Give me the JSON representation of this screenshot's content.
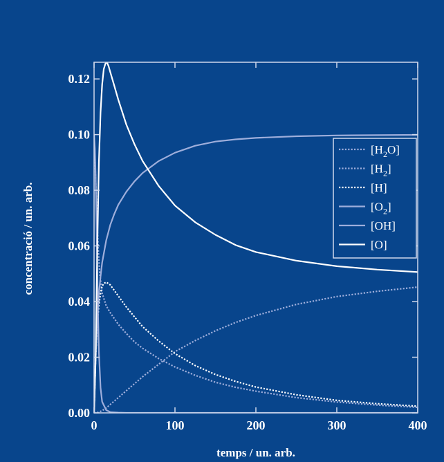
{
  "chart_data": {
    "type": "line",
    "title": "",
    "xlabel": "temps / un. arb.",
    "ylabel": "concentració / un. arb.",
    "xlim": [
      0,
      400
    ],
    "ylim": [
      0,
      0.126
    ],
    "x_ticks": [
      "0",
      "100",
      "200",
      "300",
      "400"
    ],
    "y_ticks": [
      "0.00",
      "0.02",
      "0.04",
      "0.06",
      "0.08",
      "0.10",
      "0.12"
    ],
    "legend_position": "upper-right",
    "grid": false,
    "colors": {
      "background": "#08458c",
      "axis": "#cfd8ec",
      "text": "#ffffff",
      "light_series": "#9eaedb",
      "white_series": "#ffffff"
    },
    "series": [
      {
        "name": "[H2O]",
        "legend": {
          "main": "[H",
          "sub": "2",
          "tail": "O]"
        },
        "style": "dotted",
        "color": "#9eaedb",
        "x": [
          0,
          5,
          10,
          15,
          20,
          30,
          40,
          50,
          60,
          80,
          100,
          125,
          150,
          175,
          200,
          250,
          300,
          350,
          400
        ],
        "y": [
          0,
          0.0002,
          0.0008,
          0.0018,
          0.003,
          0.0055,
          0.008,
          0.0105,
          0.013,
          0.0175,
          0.022,
          0.026,
          0.0295,
          0.0325,
          0.035,
          0.039,
          0.0418,
          0.0437,
          0.0452
        ]
      },
      {
        "name": "[H2]",
        "legend": {
          "main": "[H",
          "sub": "2",
          "tail": "]"
        },
        "style": "dotted",
        "color": "#9eaedb",
        "x": [
          0,
          1,
          2,
          3,
          5,
          7,
          10,
          15,
          20,
          30,
          40,
          50,
          60,
          80,
          100,
          125,
          150,
          175,
          200,
          250,
          300,
          350,
          400
        ],
        "y": [
          0.1,
          0.093,
          0.084,
          0.075,
          0.06,
          0.05,
          0.043,
          0.0385,
          0.036,
          0.0318,
          0.0285,
          0.0255,
          0.0232,
          0.0195,
          0.0165,
          0.0135,
          0.011,
          0.0092,
          0.0078,
          0.0055,
          0.0039,
          0.0028,
          0.002
        ]
      },
      {
        "name": "[H]",
        "legend": {
          "main": "[H]",
          "sub": "",
          "tail": ""
        },
        "style": "dotted",
        "color": "#ffffff",
        "x": [
          0,
          2,
          4,
          6,
          8,
          10,
          12,
          15,
          20,
          25,
          30,
          40,
          50,
          60,
          80,
          100,
          125,
          150,
          175,
          200,
          250,
          300,
          350,
          400
        ],
        "y": [
          0,
          0.02,
          0.032,
          0.039,
          0.043,
          0.0455,
          0.0465,
          0.047,
          0.046,
          0.044,
          0.042,
          0.038,
          0.0345,
          0.031,
          0.0258,
          0.0213,
          0.017,
          0.0138,
          0.0113,
          0.0093,
          0.0065,
          0.0045,
          0.0033,
          0.0024
        ]
      },
      {
        "name": "[O2]",
        "legend": {
          "main": "[O",
          "sub": "2",
          "tail": "]"
        },
        "style": "solid",
        "color": "#9eaedb",
        "x": [
          0,
          1,
          2,
          3,
          4,
          5,
          6,
          8,
          10,
          15,
          20,
          30,
          40,
          400
        ],
        "y": [
          0.1,
          0.095,
          0.085,
          0.07,
          0.052,
          0.035,
          0.022,
          0.009,
          0.004,
          0.001,
          0.0003,
          0.0001,
          0,
          0
        ]
      },
      {
        "name": "[OH]",
        "legend": {
          "main": "[OH]",
          "sub": "",
          "tail": ""
        },
        "style": "solid",
        "color": "#9eaedb",
        "x": [
          0,
          2,
          4,
          6,
          8,
          10,
          15,
          20,
          25,
          30,
          40,
          50,
          60,
          80,
          100,
          125,
          150,
          175,
          200,
          250,
          300,
          350,
          400
        ],
        "y": [
          0,
          0.02,
          0.034,
          0.043,
          0.049,
          0.054,
          0.062,
          0.0675,
          0.0715,
          0.0748,
          0.0795,
          0.0832,
          0.0862,
          0.0905,
          0.0935,
          0.096,
          0.0975,
          0.0983,
          0.0988,
          0.0994,
          0.0997,
          0.0998,
          0.0999
        ]
      },
      {
        "name": "[O]",
        "legend": {
          "main": "[O]",
          "sub": "",
          "tail": ""
        },
        "style": "solid",
        "color": "#ffffff",
        "x": [
          0,
          2,
          4,
          6,
          8,
          10,
          12,
          14,
          16,
          18,
          20,
          25,
          30,
          40,
          50,
          60,
          80,
          100,
          125,
          150,
          175,
          200,
          250,
          300,
          350,
          400
        ],
        "y": [
          0,
          0.02,
          0.06,
          0.09,
          0.108,
          0.118,
          0.1235,
          0.1255,
          0.126,
          0.1245,
          0.1225,
          0.1175,
          0.1125,
          0.1035,
          0.0965,
          0.0905,
          0.0815,
          0.0745,
          0.0685,
          0.064,
          0.0603,
          0.0578,
          0.0547,
          0.0527,
          0.0515,
          0.0506
        ]
      }
    ]
  }
}
